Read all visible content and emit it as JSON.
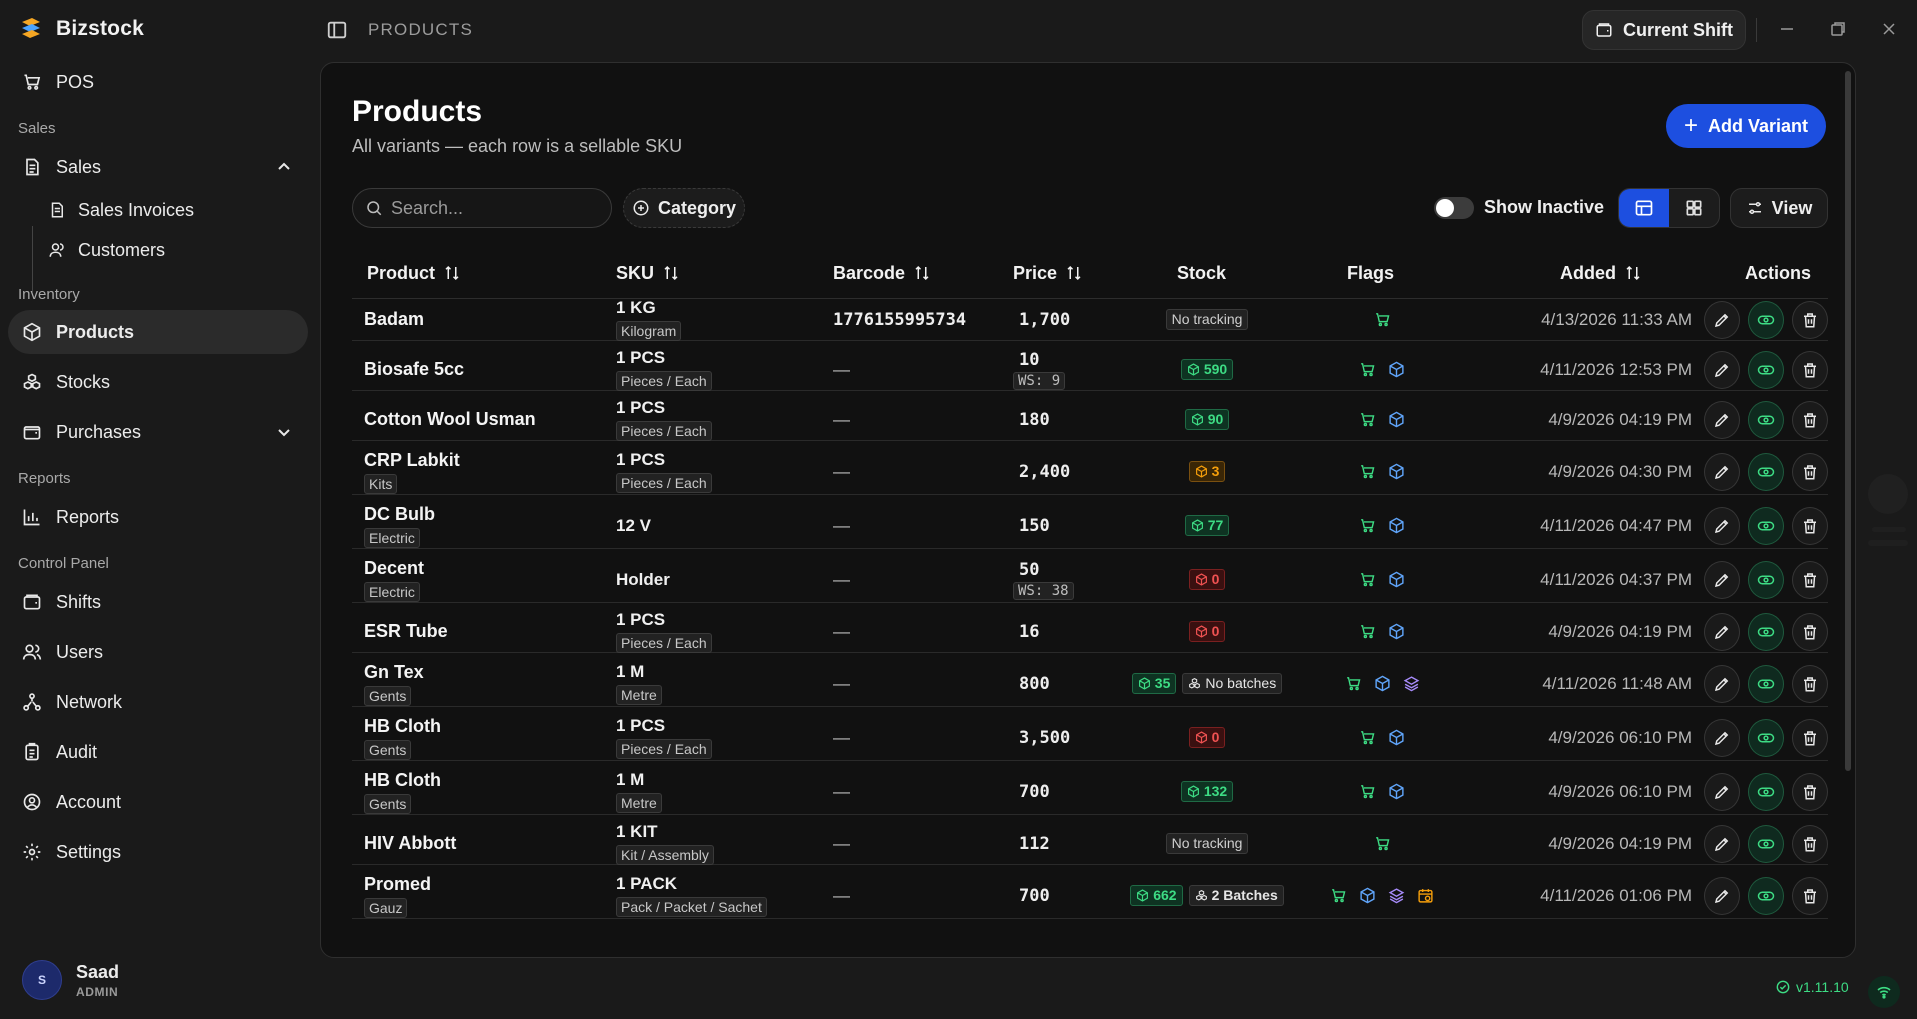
{
  "app": {
    "name": "Bizstock"
  },
  "topbar": {
    "breadcrumb": "PRODUCTS",
    "shift_label": "Current Shift"
  },
  "sidebar": {
    "pos": "POS",
    "section_sales": "Sales",
    "sales": "Sales",
    "sales_invoices": "Sales Invoices",
    "customers": "Customers",
    "section_inventory": "Inventory",
    "products": "Products",
    "stocks": "Stocks",
    "purchases": "Purchases",
    "section_reports": "Reports",
    "reports": "Reports",
    "section_control": "Control Panel",
    "shifts": "Shifts",
    "users": "Users",
    "network": "Network",
    "audit": "Audit",
    "account": "Account",
    "settings": "Settings"
  },
  "user": {
    "initial": "S",
    "name": "Saad",
    "role": "ADMIN"
  },
  "page": {
    "title": "Products",
    "subtitle": "All variants — each row is a sellable SKU",
    "add_label": "Add Variant",
    "search_placeholder": "Search...",
    "category_label": "Category",
    "show_inactive_label": "Show Inactive",
    "view_label": "View"
  },
  "columns": {
    "product": "Product",
    "sku": "SKU",
    "barcode": "Barcode",
    "price": "Price",
    "stock": "Stock",
    "flags": "Flags",
    "added": "Added",
    "actions": "Actions"
  },
  "rows": [
    {
      "name": "Badam",
      "category": "",
      "sku": "1 KG",
      "unit": "Kilogram",
      "barcode": "1776155995734",
      "price": "1,700",
      "ws": "",
      "stock_type": "none",
      "stock": "No tracking",
      "stock_extra": "",
      "flags": [
        "cart"
      ],
      "added": "4/13/2026 11:33 AM"
    },
    {
      "name": "Biosafe 5cc",
      "category": "",
      "sku": "1 PCS",
      "unit": "Pieces / Each",
      "barcode": "—",
      "price": "10",
      "ws": "WS: 9",
      "stock_type": "green",
      "stock": "590",
      "stock_extra": "",
      "flags": [
        "cart",
        "box"
      ],
      "added": "4/11/2026 12:53 PM"
    },
    {
      "name": "Cotton Wool Usman",
      "category": "",
      "sku": "1 PCS",
      "unit": "Pieces / Each",
      "barcode": "—",
      "price": "180",
      "ws": "",
      "stock_type": "green",
      "stock": "90",
      "stock_extra": "",
      "flags": [
        "cart",
        "box"
      ],
      "added": "4/9/2026 04:19 PM"
    },
    {
      "name": "CRP Labkit",
      "category": "Kits",
      "sku": "1 PCS",
      "unit": "Pieces / Each",
      "barcode": "—",
      "price": "2,400",
      "ws": "",
      "stock_type": "orange",
      "stock": "3",
      "stock_extra": "",
      "flags": [
        "cart",
        "box"
      ],
      "added": "4/9/2026 04:30 PM"
    },
    {
      "name": "DC Bulb",
      "category": "Electric",
      "sku": "12 V",
      "unit": "",
      "barcode": "—",
      "price": "150",
      "ws": "",
      "stock_type": "green",
      "stock": "77",
      "stock_extra": "",
      "flags": [
        "cart",
        "box"
      ],
      "added": "4/11/2026 04:47 PM"
    },
    {
      "name": "Decent",
      "category": "Electric",
      "sku": "Holder",
      "unit": "",
      "barcode": "—",
      "price": "50",
      "ws": "WS: 38",
      "stock_type": "red",
      "stock": "0",
      "stock_extra": "",
      "flags": [
        "cart",
        "box"
      ],
      "added": "4/11/2026 04:37 PM"
    },
    {
      "name": "ESR Tube",
      "category": "",
      "sku": "1 PCS",
      "unit": "Pieces / Each",
      "barcode": "—",
      "price": "16",
      "ws": "",
      "stock_type": "red",
      "stock": "0",
      "stock_extra": "",
      "flags": [
        "cart",
        "box"
      ],
      "added": "4/9/2026 04:19 PM"
    },
    {
      "name": "Gn Tex",
      "category": "Gents",
      "sku": "1 M",
      "unit": "Metre",
      "barcode": "—",
      "price": "800",
      "ws": "",
      "stock_type": "green",
      "stock": "35",
      "stock_extra": "No batches",
      "flags": [
        "cart",
        "box",
        "layers"
      ],
      "added": "4/11/2026 11:48 AM"
    },
    {
      "name": "HB Cloth",
      "category": "Gents",
      "sku": "1 PCS",
      "unit": "Pieces / Each",
      "barcode": "—",
      "price": "3,500",
      "ws": "",
      "stock_type": "red",
      "stock": "0",
      "stock_extra": "",
      "flags": [
        "cart",
        "box"
      ],
      "added": "4/9/2026 06:10 PM"
    },
    {
      "name": "HB Cloth",
      "category": "Gents",
      "sku": "1 M",
      "unit": "Metre",
      "barcode": "—",
      "price": "700",
      "ws": "",
      "stock_type": "green",
      "stock": "132",
      "stock_extra": "",
      "flags": [
        "cart",
        "box"
      ],
      "added": "4/9/2026 06:10 PM"
    },
    {
      "name": "HIV Abbott",
      "category": "",
      "sku": "1 KIT",
      "unit": "Kit / Assembly",
      "barcode": "—",
      "price": "112",
      "ws": "",
      "stock_type": "none",
      "stock": "No tracking",
      "stock_extra": "",
      "flags": [
        "cart"
      ],
      "added": "4/9/2026 04:19 PM"
    },
    {
      "name": "Promed",
      "category": "Gauz",
      "sku": "1 PACK",
      "unit": "Pack / Packet / Sachet",
      "barcode": "—",
      "price": "700",
      "ws": "",
      "stock_type": "green",
      "stock": "662",
      "stock_extra": "2 Batches",
      "flags": [
        "cart",
        "box",
        "layers",
        "calendar"
      ],
      "added": "4/11/2026 01:06 PM"
    }
  ],
  "footer": {
    "version": "v1.11.10"
  },
  "colors": {
    "accent": "#1d4fe0",
    "success": "#3ddc84",
    "warning": "#f59e0b",
    "danger": "#f05252"
  }
}
